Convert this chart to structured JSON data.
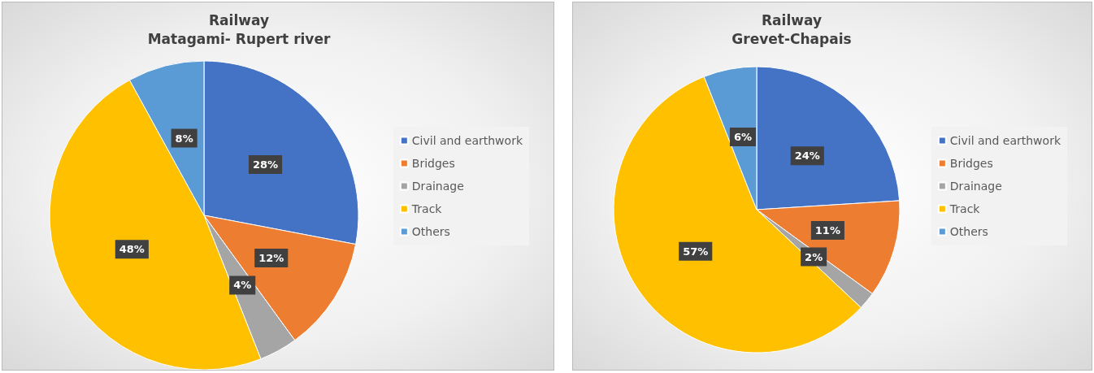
{
  "chart_data": [
    {
      "type": "pie",
      "title": "Railway",
      "subtitle": "Matagami- Rupert river",
      "categories": [
        "Civil and earthwork",
        "Bridges",
        "Drainage",
        "Track",
        "Others"
      ],
      "values": [
        28,
        12,
        4,
        48,
        8
      ],
      "colors": [
        "#4472c4",
        "#ed7d31",
        "#a5a5a5",
        "#ffc000",
        "#5b9bd5"
      ],
      "value_labels": [
        "28%",
        "12%",
        "4%",
        "48%",
        "8%"
      ],
      "legend": "right"
    },
    {
      "type": "pie",
      "title": "Railway",
      "subtitle": "Grevet-Chapais",
      "categories": [
        "Civil and earthwork",
        "Bridges",
        "Drainage",
        "Track",
        "Others"
      ],
      "values": [
        24,
        11,
        2,
        57,
        6
      ],
      "colors": [
        "#4472c4",
        "#ed7d31",
        "#a5a5a5",
        "#ffc000",
        "#5b9bd5"
      ],
      "value_labels": [
        "24%",
        "11%",
        "2%",
        "57%",
        "6%"
      ],
      "legend": "right"
    }
  ]
}
